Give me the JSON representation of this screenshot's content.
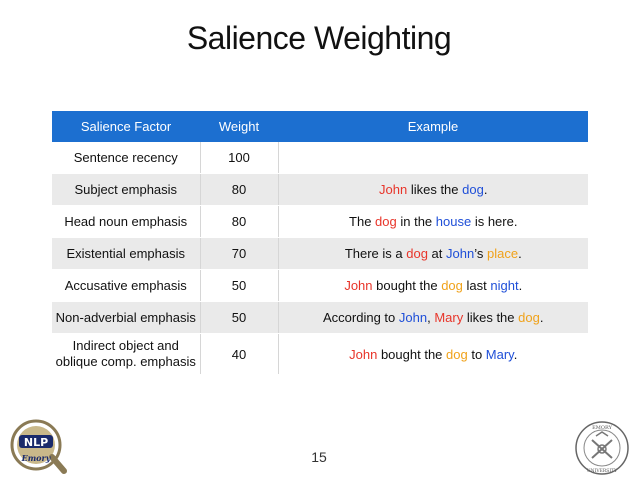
{
  "slide": {
    "title": "Salience Weighting",
    "page_number": "15"
  },
  "table": {
    "headers": [
      "Salience Factor",
      "Weight",
      "Example"
    ],
    "rows": [
      {
        "factor": "Sentence recency",
        "weight": "100",
        "example": []
      },
      {
        "factor": "Subject emphasis",
        "weight": "80",
        "example": [
          {
            "text": "John",
            "color": "red"
          },
          {
            "text": " likes the ",
            "color": "black"
          },
          {
            "text": "dog",
            "color": "blue"
          },
          {
            "text": ".",
            "color": "black"
          }
        ]
      },
      {
        "factor": "Head noun emphasis",
        "weight": "80",
        "example": [
          {
            "text": "The ",
            "color": "black"
          },
          {
            "text": "dog",
            "color": "red"
          },
          {
            "text": " in the ",
            "color": "black"
          },
          {
            "text": "house",
            "color": "blue"
          },
          {
            "text": " is here.",
            "color": "black"
          }
        ]
      },
      {
        "factor": "Existential emphasis",
        "weight": "70",
        "example": [
          {
            "text": "There is a ",
            "color": "black"
          },
          {
            "text": "dog",
            "color": "red"
          },
          {
            "text": " at ",
            "color": "black"
          },
          {
            "text": "John",
            "color": "blue"
          },
          {
            "text": "’s ",
            "color": "black"
          },
          {
            "text": "place",
            "color": "orange"
          },
          {
            "text": ".",
            "color": "black"
          }
        ]
      },
      {
        "factor": "Accusative emphasis",
        "weight": "50",
        "example": [
          {
            "text": "John",
            "color": "red"
          },
          {
            "text": " bought the ",
            "color": "black"
          },
          {
            "text": "dog",
            "color": "orange"
          },
          {
            "text": " last ",
            "color": "black"
          },
          {
            "text": "night",
            "color": "blue"
          },
          {
            "text": ".",
            "color": "black"
          }
        ]
      },
      {
        "factor": "Non-adverbial emphasis",
        "weight": "50",
        "example": [
          {
            "text": "According to ",
            "color": "black"
          },
          {
            "text": "John",
            "color": "blue"
          },
          {
            "text": ", ",
            "color": "black"
          },
          {
            "text": "Mary",
            "color": "red"
          },
          {
            "text": " likes the ",
            "color": "black"
          },
          {
            "text": "dog",
            "color": "orange"
          },
          {
            "text": ".",
            "color": "black"
          }
        ]
      },
      {
        "factor": "Indirect object and oblique comp. emphasis",
        "factor_line1": "Indirect object and",
        "factor_line2": "oblique comp. emphasis",
        "weight": "40",
        "example": [
          {
            "text": "John",
            "color": "red"
          },
          {
            "text": " bought the ",
            "color": "black"
          },
          {
            "text": "dog",
            "color": "orange"
          },
          {
            "text": " to ",
            "color": "black"
          },
          {
            "text": "Mary",
            "color": "blue"
          },
          {
            "text": ".",
            "color": "black"
          }
        ]
      }
    ]
  },
  "colors": {
    "header_bg": "#1c6fd0",
    "row_alt_bg": "#eaeaea",
    "red": "#e8352a",
    "blue": "#1f4fd8",
    "orange": "#f0a21a"
  },
  "logos": {
    "left": {
      "icon": "nlp-emory-logo",
      "text": "NLP",
      "subtext": "Emory"
    },
    "right": {
      "icon": "emory-university-seal",
      "text": "EMORY UNIVERSITY"
    }
  }
}
